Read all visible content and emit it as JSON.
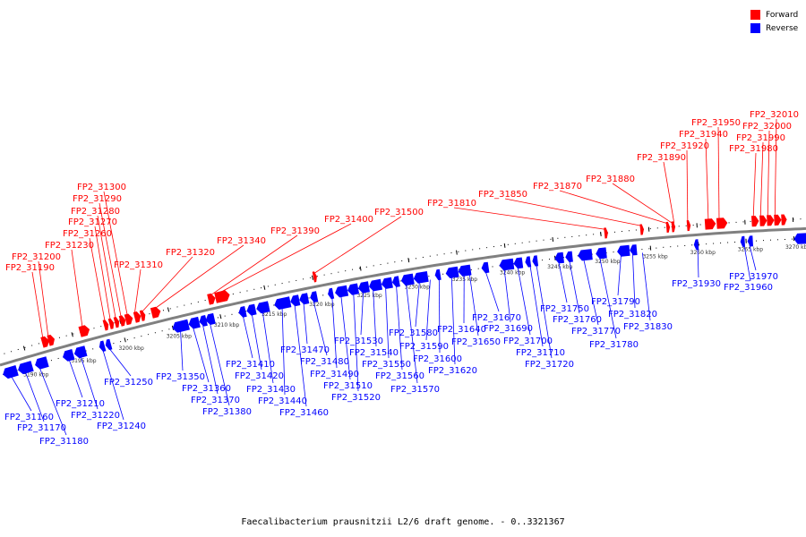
{
  "title": "Faecalibacterium prausnitzii L2/6 draft genome. - 0..3321367",
  "legend": [
    {
      "label": "Forward",
      "color": "#ff0000"
    },
    {
      "label": "Reverse",
      "color": "#0000ff"
    }
  ],
  "colors": {
    "forward": "#ff0000",
    "reverse": "#0000ff",
    "backbone": "#808080"
  },
  "scale_labels": [
    "3190 kbp",
    "3195 kbp",
    "3200 kbp",
    "3205 kbp",
    "3210 kbp",
    "3215 kbp",
    "3220 kbp",
    "3225 kbp",
    "3230 kbp",
    "3235 kbp",
    "3240 kbp",
    "3245 kbp",
    "3250 kbp",
    "3255 kbp",
    "3260 kbp",
    "3265 kbp",
    "3270 kbp"
  ],
  "forward_genes": [
    "FP2_31190",
    "FP2_31200",
    "FP2_31230",
    "FP2_31260",
    "FP2_31270",
    "FP2_31280",
    "FP2_31290",
    "FP2_31300",
    "FP2_31310",
    "FP2_31320",
    "FP2_31340",
    "FP2_31390",
    "FP2_31400",
    "FP2_31500",
    "FP2_31810",
    "FP2_31850",
    "FP2_31870",
    "FP2_31880",
    "FP2_31890",
    "FP2_31920",
    "FP2_31940",
    "FP2_31950",
    "FP2_31980",
    "FP2_31990",
    "FP2_32000",
    "FP2_32010"
  ],
  "reverse_genes": [
    "FP2_31160",
    "FP2_31170",
    "FP2_31180",
    "FP2_31210",
    "FP2_31220",
    "FP2_31240",
    "FP2_31250",
    "FP2_31350",
    "FP2_31360",
    "FP2_31370",
    "FP2_31380",
    "FP2_31410",
    "FP2_31420",
    "FP2_31430",
    "FP2_31440",
    "FP2_31460",
    "FP2_31470",
    "FP2_31480",
    "FP2_31490",
    "FP2_31510",
    "FP2_31520",
    "FP2_31530",
    "FP2_31540",
    "FP2_31550",
    "FP2_31560",
    "FP2_31570",
    "FP2_31580",
    "FP2_31590",
    "FP2_31600",
    "FP2_31620",
    "FP2_31640",
    "FP2_31650",
    "FP2_31670",
    "FP2_31690",
    "FP2_31700",
    "FP2_31710",
    "FP2_31720",
    "FP2_31750",
    "FP2_31760",
    "FP2_31770",
    "FP2_31780",
    "FP2_31790",
    "FP2_31820",
    "FP2_31830",
    "FP2_31930",
    "FP2_31960",
    "FP2_31970"
  ]
}
